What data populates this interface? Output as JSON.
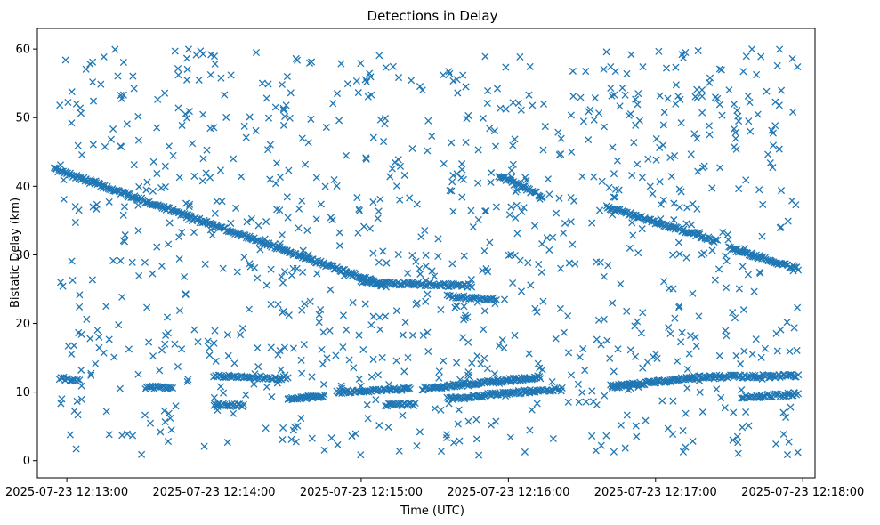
{
  "chart_data": {
    "type": "scatter",
    "title": "Detections in Delay",
    "xlabel": "Time (UTC)",
    "ylabel": "Bistatic Delay (km)",
    "marker": "x",
    "color": "#1f77b4",
    "xlim_seconds": [
      -12,
      305
    ],
    "ylim": [
      -2.5,
      63
    ],
    "x_origin": "2025-07-23 12:13:00",
    "xticks": [
      {
        "value": 0,
        "label": "2025-07-23 12:13:00"
      },
      {
        "value": 60,
        "label": "2025-07-23 12:14:00"
      },
      {
        "value": 120,
        "label": "2025-07-23 12:15:00"
      },
      {
        "value": 180,
        "label": "2025-07-23 12:16:00"
      },
      {
        "value": 240,
        "label": "2025-07-23 12:17:00"
      },
      {
        "value": 300,
        "label": "2025-07-23 12:18:00"
      }
    ],
    "yticks": [
      {
        "value": 0,
        "label": "0"
      },
      {
        "value": 10,
        "label": "10"
      },
      {
        "value": 20,
        "label": "20"
      },
      {
        "value": 30,
        "label": "30"
      },
      {
        "value": 40,
        "label": "40"
      },
      {
        "value": 50,
        "label": "50"
      },
      {
        "value": 60,
        "label": "60"
      }
    ],
    "tracks": [
      {
        "name": "long-descending-track",
        "t_start": -5,
        "d_start": 42.5,
        "t_end": 130,
        "d_end": 25.5,
        "step_s": 0.5
      },
      {
        "name": "flat-track-26km",
        "t_start": 120,
        "d_start": 26.0,
        "t_end": 165,
        "d_end": 25.5,
        "step_s": 0.6
      },
      {
        "name": "flat-track-24km",
        "t_start": 155,
        "d_start": 24.0,
        "t_end": 175,
        "d_end": 23.5,
        "step_s": 0.7
      },
      {
        "name": "descending-track-41km",
        "t_start": 176,
        "d_start": 41.5,
        "t_end": 194,
        "d_end": 38.5,
        "step_s": 0.5
      },
      {
        "name": "descending-track-37km",
        "t_start": 220,
        "d_start": 37.0,
        "t_end": 265,
        "d_end": 32.0,
        "step_s": 0.5
      },
      {
        "name": "descending-track-31km",
        "t_start": 270,
        "d_start": 31.0,
        "t_end": 298,
        "d_end": 28.0,
        "step_s": 0.5
      },
      {
        "name": "low-track-12km",
        "t_start": -3,
        "d_start": 12.0,
        "t_end": 5,
        "d_end": 11.8,
        "step_s": 0.6
      },
      {
        "name": "low-track-10km-a",
        "t_start": 32,
        "d_start": 10.7,
        "t_end": 43,
        "d_end": 10.6,
        "step_s": 0.6
      },
      {
        "name": "low-track-12km-b",
        "t_start": 60,
        "d_start": 12.3,
        "t_end": 90,
        "d_end": 12.0,
        "step_s": 0.6
      },
      {
        "name": "low-track-8km",
        "t_start": 60,
        "d_start": 8.2,
        "t_end": 72,
        "d_end": 8.0,
        "step_s": 0.6
      },
      {
        "name": "rising-track-9km",
        "t_start": 90,
        "d_start": 9.0,
        "t_end": 105,
        "d_end": 9.5,
        "step_s": 0.5
      },
      {
        "name": "rising-track-10km",
        "t_start": 110,
        "d_start": 10.0,
        "t_end": 140,
        "d_end": 10.5,
        "step_s": 0.5
      },
      {
        "name": "low-track-8km-b",
        "t_start": 130,
        "d_start": 8.2,
        "t_end": 142,
        "d_end": 8.2,
        "step_s": 0.6
      },
      {
        "name": "rising-track-11km",
        "t_start": 145,
        "d_start": 10.5,
        "t_end": 193,
        "d_end": 12.2,
        "step_s": 0.45
      },
      {
        "name": "rising-track-9km-b",
        "t_start": 155,
        "d_start": 9.0,
        "t_end": 193,
        "d_end": 10.3,
        "step_s": 0.5
      },
      {
        "name": "low-track-10km-b",
        "t_start": 194,
        "d_start": 10.3,
        "t_end": 202,
        "d_end": 10.4,
        "step_s": 0.6
      },
      {
        "name": "rising-track-11km-b",
        "t_start": 222,
        "d_start": 10.8,
        "t_end": 262,
        "d_end": 12.3,
        "step_s": 0.45
      },
      {
        "name": "low-track-12km-c",
        "t_start": 262,
        "d_start": 12.2,
        "t_end": 298,
        "d_end": 12.4,
        "step_s": 0.6
      },
      {
        "name": "low-track-9km",
        "t_start": 275,
        "d_start": 9.3,
        "t_end": 298,
        "d_end": 9.7,
        "step_s": 0.6
      }
    ],
    "clutter": {
      "count": 1000,
      "t_range": [
        -3,
        298
      ],
      "d_range": [
        0.5,
        60
      ],
      "seed": 7
    }
  }
}
